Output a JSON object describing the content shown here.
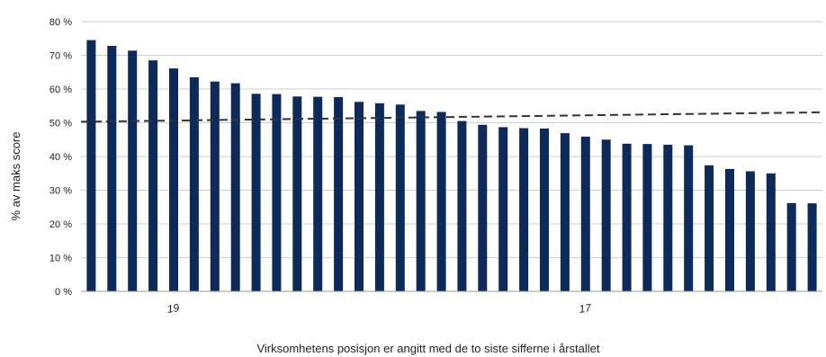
{
  "chart_data": {
    "type": "bar",
    "ylabel": "% av maks score",
    "xlabel": "Virksomhetens posisjon er angitt med de to siste sifferne i årstallet",
    "ylim": [
      0,
      80
    ],
    "yticks": [
      "0 %",
      "10 %",
      "20 %",
      "30 %",
      "40 %",
      "50 %",
      "60 %",
      "70 %",
      "80 %"
    ],
    "grid": true,
    "colors": {
      "bar": "#0d2a5c",
      "grid": "#cfcfcf",
      "reference": "#333333"
    },
    "values": [
      74.5,
      72.8,
      71.4,
      68.5,
      66.1,
      63.5,
      62.2,
      61.7,
      58.6,
      58.5,
      57.8,
      57.7,
      57.6,
      56.2,
      55.8,
      55.4,
      53.5,
      53.2,
      50.5,
      49.4,
      48.7,
      48.4,
      48.3,
      46.9,
      45.9,
      45.0,
      43.8,
      43.7,
      43.5,
      43.3,
      37.4,
      36.3,
      35.6,
      35.0,
      26.2,
      26.1
    ],
    "category_labels": [
      {
        "index": 4,
        "text": "19"
      },
      {
        "index": 24,
        "text": "17"
      }
    ],
    "reference_line": {
      "style": "dashed",
      "start": 50.3,
      "end": 53.1
    }
  }
}
